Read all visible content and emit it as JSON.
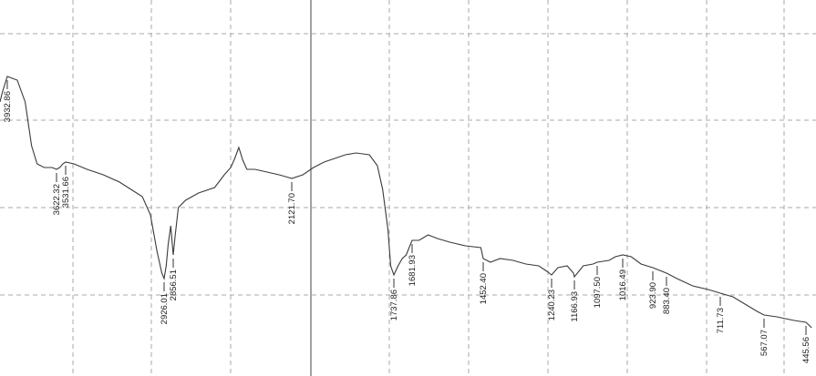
{
  "chart_data": {
    "type": "line",
    "title": "",
    "xlabel": "",
    "ylabel": "",
    "x_direction": "descending",
    "xlim": [
      4000,
      400
    ],
    "grid": true,
    "series": [
      {
        "values": [
          [
            4000,
            0.74
          ],
          [
            3980,
            0.765
          ],
          [
            3932.86,
            0.81
          ],
          [
            3870,
            0.8
          ],
          [
            3820,
            0.74
          ],
          [
            3780,
            0.62
          ],
          [
            3745,
            0.57
          ],
          [
            3700,
            0.56
          ],
          [
            3650,
            0.56
          ],
          [
            3622.32,
            0.555
          ],
          [
            3590,
            0.56
          ],
          [
            3560,
            0.57
          ],
          [
            3531.66,
            0.575
          ],
          [
            3480,
            0.57
          ],
          [
            3400,
            0.555
          ],
          [
            3300,
            0.54
          ],
          [
            3200,
            0.52
          ],
          [
            3130,
            0.5
          ],
          [
            3060,
            0.48
          ],
          [
            3010,
            0.43
          ],
          [
            2970,
            0.33
          ],
          [
            2940,
            0.27
          ],
          [
            2926.01,
            0.255
          ],
          [
            2910,
            0.29
          ],
          [
            2895,
            0.35
          ],
          [
            2875,
            0.4
          ],
          [
            2865,
            0.355
          ],
          [
            2856.51,
            0.32
          ],
          [
            2845,
            0.37
          ],
          [
            2825,
            0.45
          ],
          [
            2780,
            0.47
          ],
          [
            2700,
            0.49
          ],
          [
            2600,
            0.505
          ],
          [
            2540,
            0.54
          ],
          [
            2500,
            0.56
          ],
          [
            2475,
            0.585
          ],
          [
            2450,
            0.615
          ],
          [
            2425,
            0.58
          ],
          [
            2400,
            0.555
          ],
          [
            2350,
            0.555
          ],
          [
            2300,
            0.55
          ],
          [
            2250,
            0.545
          ],
          [
            2200,
            0.54
          ],
          [
            2160,
            0.535
          ],
          [
            2121.7,
            0.53
          ],
          [
            2080,
            0.54
          ],
          [
            2040,
            0.56
          ],
          [
            2000,
            0.575
          ],
          [
            1960,
            0.585
          ],
          [
            1920,
            0.595
          ],
          [
            1880,
            0.6
          ],
          [
            1830,
            0.595
          ],
          [
            1800,
            0.565
          ],
          [
            1780,
            0.5
          ],
          [
            1760,
            0.39
          ],
          [
            1750,
            0.29
          ],
          [
            1737.86,
            0.265
          ],
          [
            1725,
            0.29
          ],
          [
            1712,
            0.31
          ],
          [
            1700,
            0.32
          ],
          [
            1681.93,
            0.36
          ],
          [
            1660,
            0.36
          ],
          [
            1630,
            0.375
          ],
          [
            1600,
            0.365
          ],
          [
            1560,
            0.355
          ],
          [
            1510,
            0.345
          ],
          [
            1460,
            0.34
          ],
          [
            1452.4,
            0.31
          ],
          [
            1430,
            0.3
          ],
          [
            1400,
            0.31
          ],
          [
            1360,
            0.305
          ],
          [
            1320,
            0.295
          ],
          [
            1280,
            0.29
          ],
          [
            1255,
            0.275
          ],
          [
            1240.23,
            0.265
          ],
          [
            1220,
            0.285
          ],
          [
            1190,
            0.29
          ],
          [
            1170,
            0.27
          ],
          [
            1166.93,
            0.26
          ],
          [
            1140,
            0.29
          ],
          [
            1110,
            0.295
          ],
          [
            1097.5,
            0.3
          ],
          [
            1060,
            0.305
          ],
          [
            1040,
            0.315
          ],
          [
            1016.49,
            0.32
          ],
          [
            990,
            0.315
          ],
          [
            960,
            0.295
          ],
          [
            923.9,
            0.285
          ],
          [
            883.4,
            0.27
          ],
          [
            850,
            0.255
          ],
          [
            800,
            0.235
          ],
          [
            750,
            0.225
          ],
          [
            711.73,
            0.215
          ],
          [
            670,
            0.205
          ],
          [
            630,
            0.185
          ],
          [
            590,
            0.165
          ],
          [
            567.07,
            0.155
          ],
          [
            530,
            0.15
          ],
          [
            480,
            0.14
          ],
          [
            445.56,
            0.135
          ],
          [
            420,
            0.12
          ]
        ]
      }
    ],
    "peaks": [
      {
        "x": 3932.86,
        "label": "3932.86"
      },
      {
        "x": 3622.32,
        "label": "3622.32"
      },
      {
        "x": 3531.66,
        "label": "3531.66"
      },
      {
        "x": 2926.01,
        "label": "2926.01"
      },
      {
        "x": 2856.51,
        "label": "2856.51"
      },
      {
        "x": 2121.7,
        "label": "2121.70"
      },
      {
        "x": 1737.86,
        "label": "1737.86"
      },
      {
        "x": 1681.93,
        "label": "1681.93"
      },
      {
        "x": 1452.4,
        "label": "1452.40"
      },
      {
        "x": 1240.23,
        "label": "1240.23"
      },
      {
        "x": 1166.93,
        "label": "1166.93"
      },
      {
        "x": 1097.5,
        "label": "1097.50"
      },
      {
        "x": 1016.49,
        "label": "1016.49"
      },
      {
        "x": 923.9,
        "label": "923.90"
      },
      {
        "x": 883.4,
        "label": "883.40"
      },
      {
        "x": 711.73,
        "label": "711.73"
      },
      {
        "x": 567.07,
        "label": "567.07"
      },
      {
        "x": 445.56,
        "label": "445.56"
      }
    ]
  }
}
